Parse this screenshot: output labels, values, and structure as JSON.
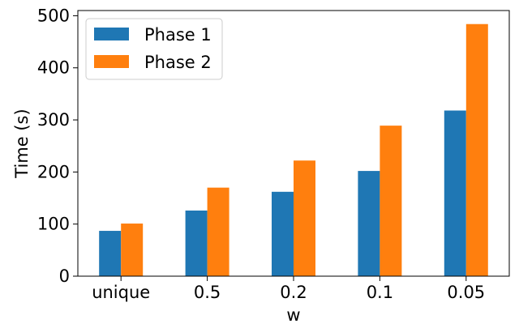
{
  "chart_data": {
    "type": "bar",
    "title": "",
    "xlabel": "w",
    "ylabel": "Time (s)",
    "categories": [
      "unique",
      "0.5",
      "0.2",
      "0.1",
      "0.05"
    ],
    "series": [
      {
        "name": "Phase 1",
        "color": "#1f77b4",
        "values": [
          87,
          126,
          162,
          202,
          318
        ]
      },
      {
        "name": "Phase 2",
        "color": "#ff7f0e",
        "values": [
          101,
          170,
          222,
          289,
          484
        ]
      }
    ],
    "ylim": [
      0,
      510
    ],
    "yticks": [
      0,
      100,
      200,
      300,
      400,
      500
    ],
    "grid": false,
    "legend_position": "top-left"
  }
}
